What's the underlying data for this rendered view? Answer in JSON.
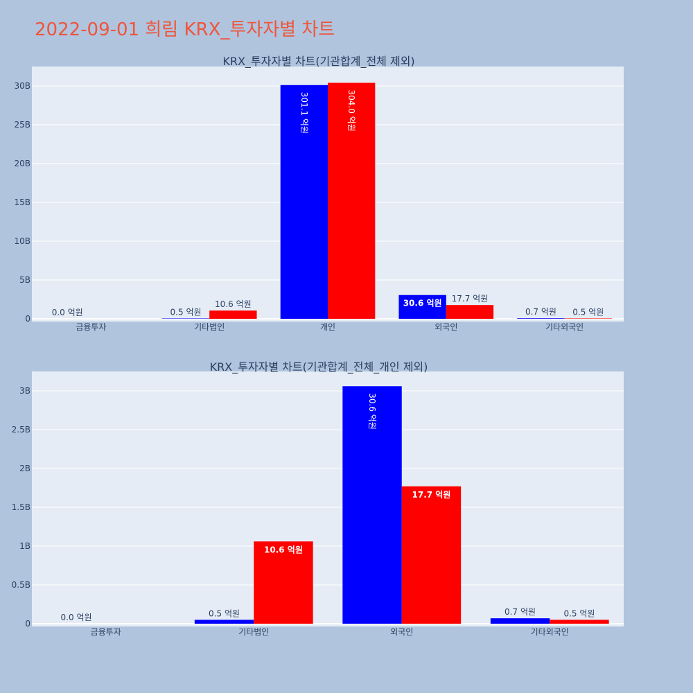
{
  "page_title": "2022-09-01 희림 KRX_투자자별 차트",
  "colors": {
    "series_a": "#0000ff",
    "series_b": "#ff0000",
    "plot_bg": "#e5ecf6",
    "page_bg": "#b0c4de",
    "title": "#ef553b",
    "text": "#2a3f5f"
  },
  "chart_data": [
    {
      "type": "bar",
      "title": "KRX_투자자별 차트(기관합계_전체 제외)",
      "categories": [
        "금융투자",
        "기타법인",
        "개인",
        "외국인",
        "기타외국인"
      ],
      "ylim": [
        0,
        32.5
      ],
      "yticks": [
        0,
        5,
        10,
        15,
        20,
        25,
        30
      ],
      "ytick_labels": [
        "0",
        "5B",
        "10B",
        "15B",
        "20B",
        "25B",
        "30B"
      ],
      "grid": true,
      "series": [
        {
          "color": "#0000ff",
          "values": [
            0.0,
            0.05,
            30.11,
            3.06,
            0.07
          ],
          "labels": [
            "0.0 억원",
            "0.5 억원",
            "301.1 억원",
            "30.6 억원",
            "0.7 억원"
          ]
        },
        {
          "color": "#ff0000",
          "values": [
            0.0,
            1.06,
            30.4,
            1.77,
            0.05
          ],
          "labels": [
            "",
            "10.6 억원",
            "304.0 억원",
            "17.7 억원",
            "0.5 억원"
          ]
        }
      ]
    },
    {
      "type": "bar",
      "title": "KRX_투자자별 차트(기관합계_전체_개인 제외)",
      "categories": [
        "금융투자",
        "기타법인",
        "외국인",
        "기타외국인"
      ],
      "ylim": [
        0,
        3.25
      ],
      "yticks": [
        0,
        0.5,
        1,
        1.5,
        2,
        2.5,
        3
      ],
      "ytick_labels": [
        "0",
        "0.5B",
        "1B",
        "1.5B",
        "2B",
        "2.5B",
        "3B"
      ],
      "grid": true,
      "series": [
        {
          "color": "#0000ff",
          "values": [
            0.0,
            0.05,
            3.06,
            0.07
          ],
          "labels": [
            "0.0 억원",
            "0.5 억원",
            "30.6 억원",
            "0.7 억원"
          ]
        },
        {
          "color": "#ff0000",
          "values": [
            0.0,
            1.06,
            1.77,
            0.05
          ],
          "labels": [
            "",
            "10.6 억원",
            "17.7 억원",
            "0.5 억원"
          ]
        }
      ]
    }
  ]
}
